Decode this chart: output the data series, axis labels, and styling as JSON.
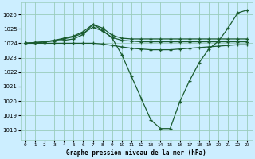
{
  "title": "Graphe pression niveau de la mer (hPa)",
  "bg_color": "#cceeff",
  "grid_color": "#99ccbb",
  "line_color": "#1a5c30",
  "marker_color": "#1a5c30",
  "ylabel_ticks": [
    1018,
    1019,
    1020,
    1021,
    1022,
    1023,
    1024,
    1025,
    1026
  ],
  "xlim": [
    -0.5,
    23.5
  ],
  "ylim": [
    1017.3,
    1026.8
  ],
  "series": [
    {
      "x": [
        0,
        1,
        2,
        3,
        4,
        5,
        6,
        7,
        8,
        9,
        10,
        11,
        12,
        13,
        14,
        15,
        16,
        17,
        18,
        19,
        20,
        21,
        22,
        23
      ],
      "y": [
        1024.0,
        1024.0,
        1024.1,
        1024.15,
        1024.2,
        1024.3,
        1024.6,
        1025.3,
        1024.9,
        1024.35,
        1023.2,
        1021.7,
        1020.2,
        1018.7,
        1018.1,
        1018.1,
        1019.95,
        1021.4,
        1022.65,
        1023.6,
        1024.15,
        1025.05,
        1026.1,
        1026.3
      ]
    },
    {
      "x": [
        0,
        1,
        2,
        3,
        4,
        5,
        6,
        7,
        8,
        9,
        10,
        11,
        12,
        13,
        14,
        15,
        16,
        17,
        18,
        19,
        20,
        21,
        22,
        23
      ],
      "y": [
        1024.0,
        1024.05,
        1024.1,
        1024.2,
        1024.35,
        1024.5,
        1024.8,
        1025.3,
        1025.05,
        1024.55,
        1024.35,
        1024.3,
        1024.3,
        1024.3,
        1024.3,
        1024.3,
        1024.3,
        1024.3,
        1024.3,
        1024.3,
        1024.3,
        1024.3,
        1024.3,
        1024.3
      ]
    },
    {
      "x": [
        0,
        1,
        2,
        3,
        4,
        5,
        6,
        7,
        8,
        9,
        10,
        11,
        12,
        13,
        14,
        15,
        16,
        17,
        18,
        19,
        20,
        21,
        22,
        23
      ],
      "y": [
        1024.0,
        1024.05,
        1024.1,
        1024.2,
        1024.3,
        1024.45,
        1024.7,
        1025.1,
        1024.85,
        1024.4,
        1024.2,
        1024.15,
        1024.1,
        1024.1,
        1024.1,
        1024.1,
        1024.1,
        1024.1,
        1024.1,
        1024.1,
        1024.1,
        1024.1,
        1024.1,
        1024.1
      ]
    },
    {
      "x": [
        0,
        1,
        2,
        3,
        4,
        5,
        6,
        7,
        8,
        9,
        10,
        11,
        12,
        13,
        14,
        15,
        16,
        17,
        18,
        19,
        20,
        21,
        22,
        23
      ],
      "y": [
        1024.0,
        1024.0,
        1024.0,
        1024.0,
        1024.0,
        1024.0,
        1024.0,
        1024.0,
        1023.95,
        1023.85,
        1023.75,
        1023.65,
        1023.6,
        1023.55,
        1023.55,
        1023.55,
        1023.6,
        1023.65,
        1023.7,
        1023.75,
        1023.8,
        1023.85,
        1023.9,
        1023.9
      ]
    }
  ]
}
